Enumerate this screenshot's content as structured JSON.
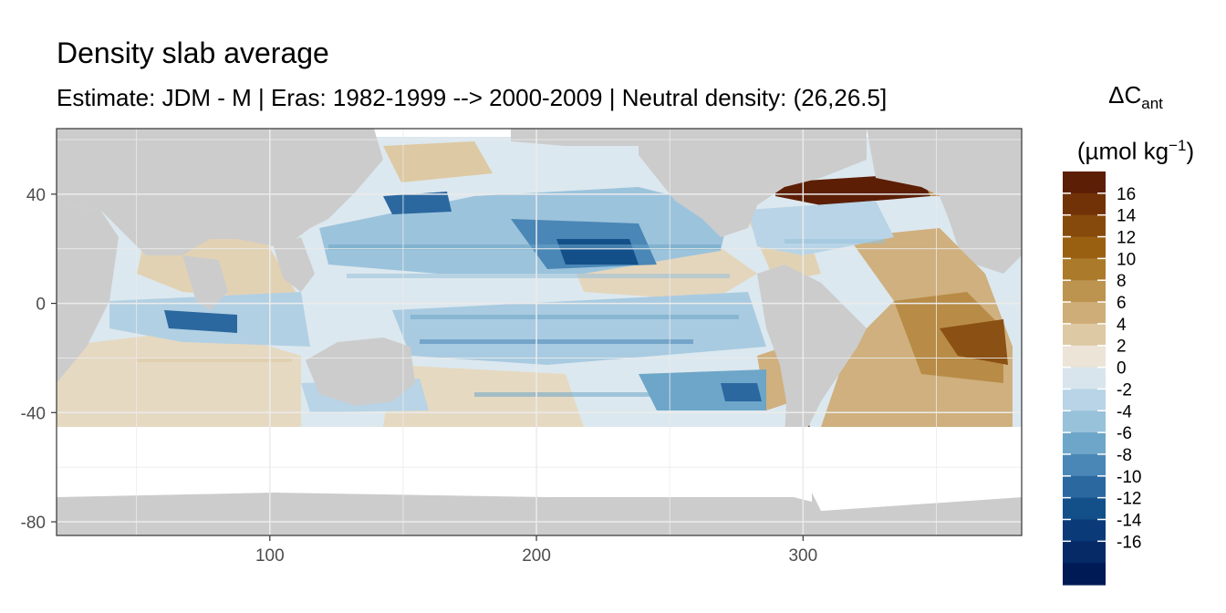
{
  "title": "Density slab average",
  "subtitle": "Estimate: JDM - M | Eras: 1982-1999 --> 2000-2009 | Neutral density: (26,26.5]",
  "legend": {
    "title_symbol": "ΔC",
    "title_subscript": "ant",
    "unit_prefix": "(µmol kg",
    "unit_exponent": "−1",
    "unit_suffix": ")",
    "labels": [
      "16",
      "14",
      "12",
      "10",
      "8",
      "6",
      "4",
      "2",
      "0",
      "-2",
      "-4",
      "-6",
      "-8",
      "-10",
      "-12",
      "-14",
      "-16"
    ],
    "colors": [
      "#5c1e05",
      "#713208",
      "#864a0c",
      "#9a6012",
      "#ab7a2a",
      "#bd9350",
      "#cead78",
      "#ddc9a3",
      "#ece4d6",
      "#d8e5ed",
      "#b8d4e6",
      "#98c1da",
      "#6ea6c9",
      "#4a87b6",
      "#2b68a0",
      "#13508a",
      "#0a3a78",
      "#052a66",
      "#001a55"
    ]
  },
  "map": {
    "land_color": "#cccccc",
    "nodata_color": "#ffffff",
    "xlim": [
      20,
      382
    ],
    "ylim": [
      -85,
      64
    ],
    "x_ticks": [
      100,
      200,
      300
    ],
    "y_ticks": [
      40,
      0,
      -40,
      -80
    ],
    "x_tick_labels": [
      "100",
      "200",
      "300"
    ],
    "y_tick_labels": [
      "40",
      "0",
      "-40",
      "-80"
    ],
    "grid": true,
    "x_label": "",
    "y_label": ""
  }
}
